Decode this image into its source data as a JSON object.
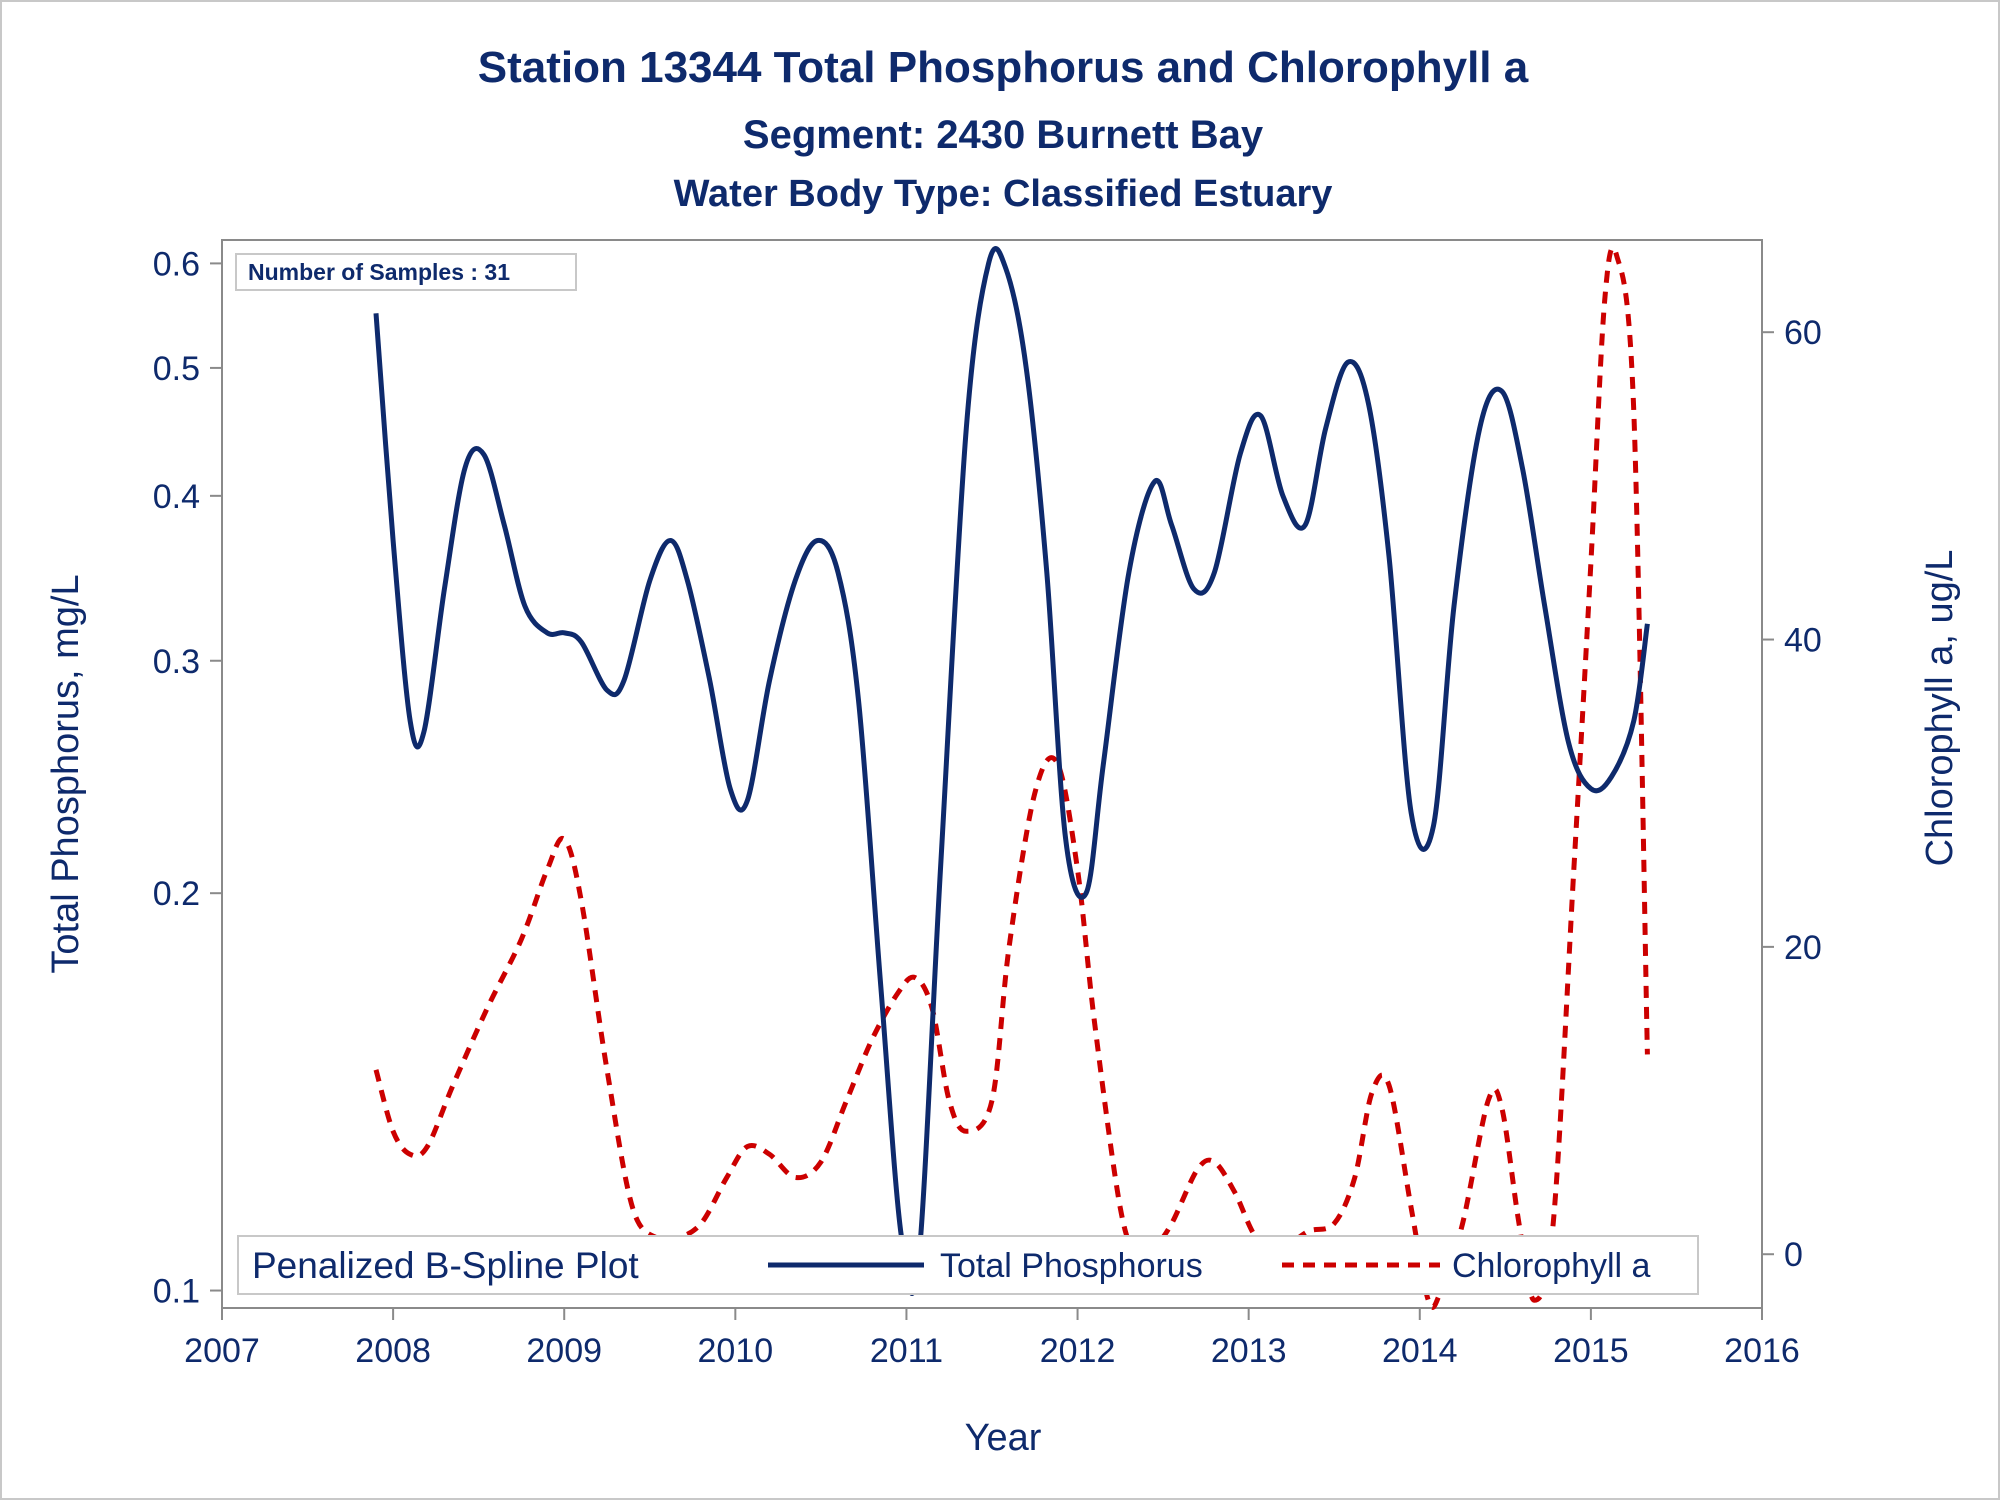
{
  "titles": {
    "line1": "Station 13344  Total Phosphorus and Chlorophyll a",
    "line2": "Segment: 2430  Burnett Bay",
    "line3": "Water Body Type: Classified Estuary"
  },
  "inset": {
    "label": "Number of Samples : 31"
  },
  "legend": {
    "title": "Penalized B-Spline Plot",
    "entries": [
      "Total Phosphorus",
      "Chlorophyll a"
    ]
  },
  "colors": {
    "phosphorus": "#0e2a6c",
    "chlorophyll": "#cc0000",
    "text": "#0e2a6c",
    "axis": "#8a8a8a"
  },
  "chart_data": {
    "type": "line",
    "x_axis": {
      "label": "Year",
      "range": [
        2007,
        2016
      ],
      "ticks": [
        2007,
        2008,
        2009,
        2010,
        2011,
        2012,
        2013,
        2014,
        2015,
        2016
      ]
    },
    "y_axis_left": {
      "label": "Total Phosphorus, mg/L",
      "scale": "log",
      "range": [
        0.097,
        0.625
      ],
      "ticks": [
        0.1,
        0.2,
        0.3,
        0.4,
        0.5,
        0.6
      ]
    },
    "y_axis_right": {
      "label": "Chlorophyll a, ug/L",
      "scale": "linear",
      "range": [
        -3.5,
        66
      ],
      "ticks": [
        0,
        20,
        40,
        60
      ]
    },
    "series": [
      {
        "name": "Total Phosphorus",
        "axis": "left",
        "style": "solid",
        "x": [
          2007.9,
          2008.0,
          2008.1,
          2008.18,
          2008.3,
          2008.42,
          2008.53,
          2008.65,
          2008.77,
          2008.9,
          2009.0,
          2009.1,
          2009.25,
          2009.35,
          2009.5,
          2009.62,
          2009.72,
          2009.85,
          2009.97,
          2010.07,
          2010.2,
          2010.35,
          2010.48,
          2010.6,
          2010.72,
          2010.85,
          2010.97,
          2011.07,
          2011.2,
          2011.35,
          2011.48,
          2011.58,
          2011.7,
          2011.82,
          2011.93,
          2012.05,
          2012.15,
          2012.3,
          2012.45,
          2012.55,
          2012.68,
          2012.8,
          2012.95,
          2013.07,
          2013.2,
          2013.33,
          2013.45,
          2013.58,
          2013.7,
          2013.82,
          2013.95,
          2014.08,
          2014.2,
          2014.35,
          2014.48,
          2014.6,
          2014.73,
          2014.87,
          2015.0,
          2015.12,
          2015.25,
          2015.33
        ],
        "y": [
          0.55,
          0.37,
          0.27,
          0.265,
          0.34,
          0.42,
          0.43,
          0.38,
          0.33,
          0.315,
          0.315,
          0.31,
          0.285,
          0.29,
          0.345,
          0.37,
          0.345,
          0.29,
          0.24,
          0.235,
          0.29,
          0.345,
          0.37,
          0.35,
          0.28,
          0.17,
          0.11,
          0.105,
          0.21,
          0.45,
          0.6,
          0.595,
          0.5,
          0.35,
          0.22,
          0.2,
          0.25,
          0.35,
          0.41,
          0.38,
          0.34,
          0.35,
          0.43,
          0.46,
          0.4,
          0.38,
          0.45,
          0.505,
          0.47,
          0.36,
          0.23,
          0.225,
          0.33,
          0.45,
          0.48,
          0.42,
          0.33,
          0.26,
          0.24,
          0.245,
          0.27,
          0.32
        ]
      },
      {
        "name": "Chlorophyll a",
        "axis": "right",
        "style": "dashed",
        "x": [
          2007.9,
          2008.0,
          2008.1,
          2008.2,
          2008.35,
          2008.55,
          2008.75,
          2008.9,
          2009.0,
          2009.1,
          2009.25,
          2009.4,
          2009.55,
          2009.65,
          2009.8,
          2009.95,
          2010.07,
          2010.2,
          2010.35,
          2010.5,
          2010.65,
          2010.8,
          2010.95,
          2011.05,
          2011.15,
          2011.25,
          2011.35,
          2011.5,
          2011.6,
          2011.75,
          2011.88,
          2012.0,
          2012.1,
          2012.25,
          2012.35,
          2012.45,
          2012.55,
          2012.7,
          2012.8,
          2012.92,
          2013.05,
          2013.2,
          2013.35,
          2013.5,
          2013.62,
          2013.72,
          2013.82,
          2013.95,
          2014.05,
          2014.12,
          2014.25,
          2014.4,
          2014.48,
          2014.58,
          2014.67,
          2014.78,
          2014.9,
          2015.0,
          2015.08,
          2015.15,
          2015.25,
          2015.33
        ],
        "y": [
          12,
          8,
          6.5,
          7,
          11,
          16,
          20.5,
          25,
          27,
          23,
          12,
          3,
          1,
          1,
          2,
          5,
          7,
          6.5,
          5,
          6,
          10,
          14,
          17,
          18,
          16,
          10,
          8,
          10,
          20,
          30,
          32,
          25,
          15,
          3,
          0,
          0.5,
          2,
          5.5,
          6,
          4,
          1,
          0.5,
          1.5,
          2,
          5,
          10.5,
          11,
          3,
          -3,
          -2.5,
          2,
          10,
          9.5,
          2,
          -3,
          2,
          25,
          45,
          62,
          65,
          55,
          13
        ]
      }
    ],
    "legend_position": "bottom-inside",
    "grid": false
  }
}
